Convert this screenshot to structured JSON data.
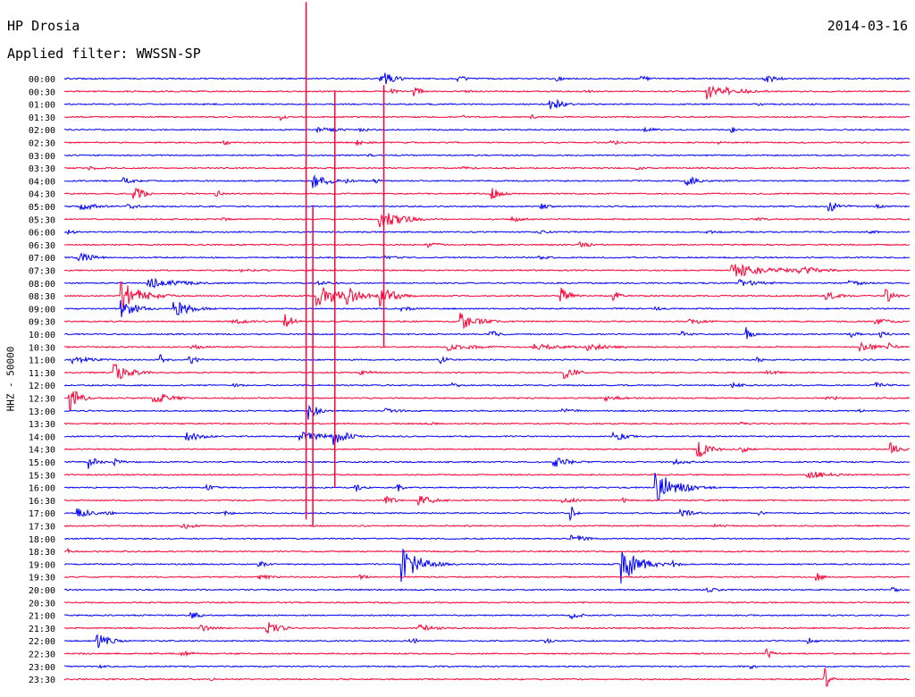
{
  "header": {
    "station": "HP Drosia",
    "filter": "Applied filter: WWSSN-SP",
    "date": "2014-03-16"
  },
  "chart_data": {
    "type": "line",
    "title": "HP Drosia",
    "ylabel": "HHZ - 50000",
    "row_colors": [
      "#0000ff",
      "#ff0033"
    ],
    "rows": [
      {
        "label": "00:00",
        "events": [
          {
            "t": 0.375,
            "amp": 10,
            "dur": 0.015
          },
          {
            "t": 0.467,
            "amp": 4,
            "dur": 0.01
          },
          {
            "t": 0.583,
            "amp": 3,
            "dur": 0.01
          },
          {
            "t": 0.683,
            "amp": 4,
            "dur": 0.01
          },
          {
            "t": 0.828,
            "amp": 6,
            "dur": 0.015
          }
        ]
      },
      {
        "label": "00:30",
        "events": [
          {
            "t": 0.388,
            "amp": 3,
            "dur": 0.008
          },
          {
            "t": 0.413,
            "amp": 6,
            "dur": 0.01
          },
          {
            "t": 0.476,
            "amp": 2,
            "dur": 0.01
          },
          {
            "t": 0.618,
            "amp": 2,
            "dur": 0.01
          },
          {
            "t": 0.76,
            "amp": 10,
            "dur": 0.03
          }
        ]
      },
      {
        "label": "01:00",
        "events": [
          {
            "t": 0.575,
            "amp": 8,
            "dur": 0.015
          },
          {
            "t": 0.823,
            "amp": 2,
            "dur": 0.01
          }
        ]
      },
      {
        "label": "01:30",
        "events": [
          {
            "t": 0.257,
            "amp": 4,
            "dur": 0.005
          },
          {
            "t": 0.473,
            "amp": 2,
            "dur": 0.005
          },
          {
            "t": 0.553,
            "amp": 3,
            "dur": 0.005
          }
        ]
      },
      {
        "label": "02:00",
        "events": [
          {
            "t": 0.3,
            "amp": 3,
            "dur": 0.03
          },
          {
            "t": 0.35,
            "amp": 2,
            "dur": 0.02
          },
          {
            "t": 0.687,
            "amp": 3,
            "dur": 0.015
          },
          {
            "t": 0.79,
            "amp": 4,
            "dur": 0.005
          }
        ]
      },
      {
        "label": "02:30",
        "events": [
          {
            "t": 0.19,
            "amp": 3,
            "dur": 0.01
          },
          {
            "t": 0.346,
            "amp": 3,
            "dur": 0.02
          },
          {
            "t": 0.647,
            "amp": 3,
            "dur": 0.015
          },
          {
            "t": 0.774,
            "amp": 2,
            "dur": 0.01
          }
        ]
      },
      {
        "label": "03:00",
        "events": [
          {
            "t": 0.36,
            "amp": 2,
            "dur": 0.01
          }
        ]
      },
      {
        "label": "03:30",
        "events": [
          {
            "t": 0.03,
            "amp": 2,
            "dur": 0.02
          },
          {
            "t": 0.473,
            "amp": 2,
            "dur": 0.02
          },
          {
            "t": 0.677,
            "amp": 2,
            "dur": 0.02
          }
        ]
      },
      {
        "label": "04:00",
        "events": [
          {
            "t": 0.07,
            "amp": 4,
            "dur": 0.015
          },
          {
            "t": 0.295,
            "amp": 8,
            "dur": 0.02
          },
          {
            "t": 0.334,
            "amp": 3,
            "dur": 0.01
          },
          {
            "t": 0.367,
            "amp": 3,
            "dur": 0.008
          },
          {
            "t": 0.736,
            "amp": 6,
            "dur": 0.015
          }
        ]
      },
      {
        "label": "04:30",
        "events": [
          {
            "t": 0.083,
            "amp": 10,
            "dur": 0.01
          },
          {
            "t": 0.18,
            "amp": 6,
            "dur": 0.005
          },
          {
            "t": 0.505,
            "amp": 8,
            "dur": 0.012
          }
        ]
      },
      {
        "label": "05:00",
        "events": [
          {
            "t": 0.02,
            "amp": 4,
            "dur": 0.03
          },
          {
            "t": 0.075,
            "amp": 3,
            "dur": 0.02
          },
          {
            "t": 0.565,
            "amp": 3,
            "dur": 0.02
          },
          {
            "t": 0.905,
            "amp": 6,
            "dur": 0.015
          },
          {
            "t": 0.96,
            "amp": 3,
            "dur": 0.01
          }
        ]
      },
      {
        "label": "05:30",
        "events": [
          {
            "t": 0.185,
            "amp": 2,
            "dur": 0.02
          },
          {
            "t": 0.372,
            "amp": 12,
            "dur": 0.025
          },
          {
            "t": 0.53,
            "amp": 3,
            "dur": 0.02
          },
          {
            "t": 0.82,
            "amp": 2,
            "dur": 0.02
          }
        ]
      },
      {
        "label": "06:00",
        "events": [
          {
            "t": 0.005,
            "amp": 3,
            "dur": 0.01
          },
          {
            "t": 0.56,
            "amp": 2,
            "dur": 0.02
          },
          {
            "t": 0.76,
            "amp": 2,
            "dur": 0.02
          },
          {
            "t": 0.95,
            "amp": 2,
            "dur": 0.02
          }
        ]
      },
      {
        "label": "06:30",
        "events": [
          {
            "t": 0.43,
            "amp": 3,
            "dur": 0.02
          },
          {
            "t": 0.61,
            "amp": 4,
            "dur": 0.02
          }
        ]
      },
      {
        "label": "07:00",
        "events": [
          {
            "t": 0.015,
            "amp": 6,
            "dur": 0.02
          },
          {
            "t": 0.38,
            "amp": 2,
            "dur": 0.03
          },
          {
            "t": 0.563,
            "amp": 2,
            "dur": 0.02
          }
        ]
      },
      {
        "label": "07:30",
        "events": [
          {
            "t": 0.21,
            "amp": 2,
            "dur": 0.04
          },
          {
            "t": 0.79,
            "amp": 8,
            "dur": 0.05
          },
          {
            "t": 0.87,
            "amp": 5,
            "dur": 0.03
          }
        ]
      },
      {
        "label": "08:00",
        "events": [
          {
            "t": 0.1,
            "amp": 6,
            "dur": 0.04
          },
          {
            "t": 0.3,
            "amp": 3,
            "dur": 0.02
          },
          {
            "t": 0.8,
            "amp": 4,
            "dur": 0.03
          },
          {
            "t": 0.93,
            "amp": 3,
            "dur": 0.02
          }
        ]
      },
      {
        "label": "08:30",
        "events": [
          {
            "t": 0.068,
            "amp": 16,
            "dur": 0.025
          },
          {
            "t": 0.3,
            "amp": 12,
            "dur": 0.03
          },
          {
            "t": 0.336,
            "amp": 10,
            "dur": 0.02
          },
          {
            "t": 0.375,
            "amp": 14,
            "dur": 0.015
          },
          {
            "t": 0.588,
            "amp": 10,
            "dur": 0.01
          },
          {
            "t": 0.65,
            "amp": 6,
            "dur": 0.008
          },
          {
            "t": 0.9,
            "amp": 5,
            "dur": 0.02
          },
          {
            "t": 0.972,
            "amp": 8,
            "dur": 0.01
          }
        ]
      },
      {
        "label": "09:00",
        "events": [
          {
            "t": 0.068,
            "amp": 10,
            "dur": 0.02
          },
          {
            "t": 0.13,
            "amp": 10,
            "dur": 0.02
          },
          {
            "t": 0.4,
            "amp": 3,
            "dur": 0.02
          },
          {
            "t": 0.7,
            "amp": 2,
            "dur": 0.02
          }
        ]
      },
      {
        "label": "09:30",
        "events": [
          {
            "t": 0.2,
            "amp": 3,
            "dur": 0.03
          },
          {
            "t": 0.262,
            "amp": 10,
            "dur": 0.008
          },
          {
            "t": 0.47,
            "amp": 10,
            "dur": 0.02
          },
          {
            "t": 0.74,
            "amp": 4,
            "dur": 0.02
          },
          {
            "t": 0.96,
            "amp": 4,
            "dur": 0.02
          }
        ]
      },
      {
        "label": "10:00",
        "events": [
          {
            "t": 0.505,
            "amp": 5,
            "dur": 0.01
          },
          {
            "t": 0.73,
            "amp": 4,
            "dur": 0.01
          },
          {
            "t": 0.807,
            "amp": 8,
            "dur": 0.008
          },
          {
            "t": 0.93,
            "amp": 4,
            "dur": 0.01
          },
          {
            "t": 0.965,
            "amp": 4,
            "dur": 0.01
          }
        ]
      },
      {
        "label": "10:30",
        "events": [
          {
            "t": 0.15,
            "amp": 3,
            "dur": 0.02
          },
          {
            "t": 0.455,
            "amp": 4,
            "dur": 0.04
          },
          {
            "t": 0.555,
            "amp": 4,
            "dur": 0.04
          },
          {
            "t": 0.62,
            "amp": 4,
            "dur": 0.03
          },
          {
            "t": 0.94,
            "amp": 6,
            "dur": 0.02
          },
          {
            "t": 0.975,
            "amp": 5,
            "dur": 0.01
          }
        ]
      },
      {
        "label": "11:00",
        "events": [
          {
            "t": 0.01,
            "amp": 4,
            "dur": 0.03
          },
          {
            "t": 0.115,
            "amp": 6,
            "dur": 0.005
          },
          {
            "t": 0.148,
            "amp": 6,
            "dur": 0.01
          },
          {
            "t": 0.445,
            "amp": 5,
            "dur": 0.01
          },
          {
            "t": 0.82,
            "amp": 3,
            "dur": 0.01
          }
        ]
      },
      {
        "label": "11:30",
        "events": [
          {
            "t": 0.06,
            "amp": 10,
            "dur": 0.02
          },
          {
            "t": 0.35,
            "amp": 4,
            "dur": 0.015
          },
          {
            "t": 0.59,
            "amp": 8,
            "dur": 0.015
          },
          {
            "t": 0.83,
            "amp": 3,
            "dur": 0.02
          }
        ]
      },
      {
        "label": "12:00",
        "events": [
          {
            "t": 0.2,
            "amp": 2,
            "dur": 0.02
          },
          {
            "t": 0.46,
            "amp": 3,
            "dur": 0.01
          },
          {
            "t": 0.79,
            "amp": 3,
            "dur": 0.02
          },
          {
            "t": 0.96,
            "amp": 3,
            "dur": 0.02
          }
        ]
      },
      {
        "label": "12:30",
        "events": [
          {
            "t": 0.007,
            "amp": 16,
            "dur": 0.01
          },
          {
            "t": 0.105,
            "amp": 8,
            "dur": 0.02
          },
          {
            "t": 0.64,
            "amp": 3,
            "dur": 0.03
          },
          {
            "t": 0.9,
            "amp": 3,
            "dur": 0.02
          }
        ]
      },
      {
        "label": "13:00",
        "events": [
          {
            "t": 0.29,
            "amp": 10,
            "dur": 0.01
          },
          {
            "t": 0.38,
            "amp": 3,
            "dur": 0.02
          },
          {
            "t": 0.59,
            "amp": 3,
            "dur": 0.02
          },
          {
            "t": 0.94,
            "amp": 4,
            "dur": 0.005
          }
        ]
      },
      {
        "label": "13:30",
        "events": [
          {
            "t": 0.43,
            "amp": 2,
            "dur": 0.02
          },
          {
            "t": 0.8,
            "amp": 2,
            "dur": 0.02
          }
        ]
      },
      {
        "label": "14:00",
        "events": [
          {
            "t": 0.145,
            "amp": 6,
            "dur": 0.02
          },
          {
            "t": 0.28,
            "amp": 5,
            "dur": 0.04
          },
          {
            "t": 0.32,
            "amp": 10,
            "dur": 0.015
          },
          {
            "t": 0.65,
            "amp": 5,
            "dur": 0.02
          }
        ]
      },
      {
        "label": "14:30",
        "events": [
          {
            "t": 0.75,
            "amp": 10,
            "dur": 0.015
          },
          {
            "t": 0.8,
            "amp": 5,
            "dur": 0.01
          },
          {
            "t": 0.978,
            "amp": 8,
            "dur": 0.01
          }
        ]
      },
      {
        "label": "15:00",
        "events": [
          {
            "t": 0.03,
            "amp": 8,
            "dur": 0.01
          },
          {
            "t": 0.06,
            "amp": 4,
            "dur": 0.01
          },
          {
            "t": 0.58,
            "amp": 6,
            "dur": 0.02
          },
          {
            "t": 0.72,
            "amp": 3,
            "dur": 0.03
          }
        ]
      },
      {
        "label": "15:30",
        "events": [
          {
            "t": 0.88,
            "amp": 5,
            "dur": 0.03
          }
        ]
      },
      {
        "label": "16:00",
        "events": [
          {
            "t": 0.17,
            "amp": 3,
            "dur": 0.01
          },
          {
            "t": 0.345,
            "amp": 5,
            "dur": 0.01
          },
          {
            "t": 0.396,
            "amp": 5,
            "dur": 0.005
          },
          {
            "t": 0.7,
            "amp": 18,
            "dur": 0.025
          }
        ]
      },
      {
        "label": "16:30",
        "events": [
          {
            "t": 0.38,
            "amp": 6,
            "dur": 0.01
          },
          {
            "t": 0.42,
            "amp": 6,
            "dur": 0.02
          },
          {
            "t": 0.59,
            "amp": 4,
            "dur": 0.02
          },
          {
            "t": 0.66,
            "amp": 3,
            "dur": 0.01
          }
        ]
      },
      {
        "label": "17:00",
        "events": [
          {
            "t": 0.015,
            "amp": 6,
            "dur": 0.02
          },
          {
            "t": 0.05,
            "amp": 3,
            "dur": 0.01
          },
          {
            "t": 0.19,
            "amp": 3,
            "dur": 0.01
          },
          {
            "t": 0.6,
            "amp": 8,
            "dur": 0.005
          },
          {
            "t": 0.73,
            "amp": 4,
            "dur": 0.02
          },
          {
            "t": 0.82,
            "amp": 3,
            "dur": 0.01
          }
        ]
      },
      {
        "label": "17:30",
        "events": [
          {
            "t": 0.14,
            "amp": 4,
            "dur": 0.015
          },
          {
            "t": 0.77,
            "amp": 3,
            "dur": 0.01
          }
        ]
      },
      {
        "label": "18:00",
        "events": [
          {
            "t": 0.6,
            "amp": 6,
            "dur": 0.015
          }
        ]
      },
      {
        "label": "18:30",
        "events": [
          {
            "t": 0.005,
            "amp": 3,
            "dur": 0.005
          }
        ]
      },
      {
        "label": "19:00",
        "events": [
          {
            "t": 0.23,
            "amp": 4,
            "dur": 0.01
          },
          {
            "t": 0.4,
            "amp": 22,
            "dur": 0.02
          },
          {
            "t": 0.66,
            "amp": 22,
            "dur": 0.02
          },
          {
            "t": 0.72,
            "amp": 4,
            "dur": 0.01
          }
        ]
      },
      {
        "label": "19:30",
        "events": [
          {
            "t": 0.23,
            "amp": 3,
            "dur": 0.02
          },
          {
            "t": 0.35,
            "amp": 3,
            "dur": 0.01
          },
          {
            "t": 0.89,
            "amp": 5,
            "dur": 0.01
          }
        ]
      },
      {
        "label": "20:00",
        "events": [
          {
            "t": 0.76,
            "amp": 3,
            "dur": 0.02
          },
          {
            "t": 0.98,
            "amp": 3,
            "dur": 0.01
          }
        ]
      },
      {
        "label": "20:30",
        "events": []
      },
      {
        "label": "21:00",
        "events": [
          {
            "t": 0.15,
            "amp": 5,
            "dur": 0.01
          },
          {
            "t": 0.6,
            "amp": 6,
            "dur": 0.01
          }
        ]
      },
      {
        "label": "21:30",
        "events": [
          {
            "t": 0.16,
            "amp": 4,
            "dur": 0.02
          },
          {
            "t": 0.24,
            "amp": 8,
            "dur": 0.015
          },
          {
            "t": 0.42,
            "amp": 5,
            "dur": 0.02
          }
        ]
      },
      {
        "label": "22:00",
        "events": [
          {
            "t": 0.04,
            "amp": 8,
            "dur": 0.015
          },
          {
            "t": 0.41,
            "amp": 8,
            "dur": 0.005
          },
          {
            "t": 0.57,
            "amp": 3,
            "dur": 0.01
          },
          {
            "t": 0.88,
            "amp": 4,
            "dur": 0.01
          }
        ]
      },
      {
        "label": "22:30",
        "events": [
          {
            "t": 0.14,
            "amp": 3,
            "dur": 0.02
          },
          {
            "t": 0.83,
            "amp": 6,
            "dur": 0.01
          }
        ]
      },
      {
        "label": "23:00",
        "events": [
          {
            "t": 0.04,
            "amp": 3,
            "dur": 0.01
          },
          {
            "t": 0.81,
            "amp": 3,
            "dur": 0.01
          }
        ]
      },
      {
        "label": "23:30",
        "events": [
          {
            "t": 0.175,
            "amp": 2,
            "dur": 0.005
          },
          {
            "t": 0.9,
            "amp": 14,
            "dur": 0.005
          }
        ]
      }
    ],
    "spikes": [
      {
        "t": 0.286,
        "row_start": -6,
        "row_end": 34.5,
        "color": "#ff0033"
      },
      {
        "t": 0.294,
        "row_start": 10,
        "row_end": 35,
        "color": "#ff0033"
      },
      {
        "t": 0.32,
        "row_start": 1,
        "row_end": 32,
        "color": "#ff0033"
      },
      {
        "t": 0.378,
        "row_start": 0.5,
        "row_end": 21,
        "color": "#ff0033"
      }
    ]
  }
}
